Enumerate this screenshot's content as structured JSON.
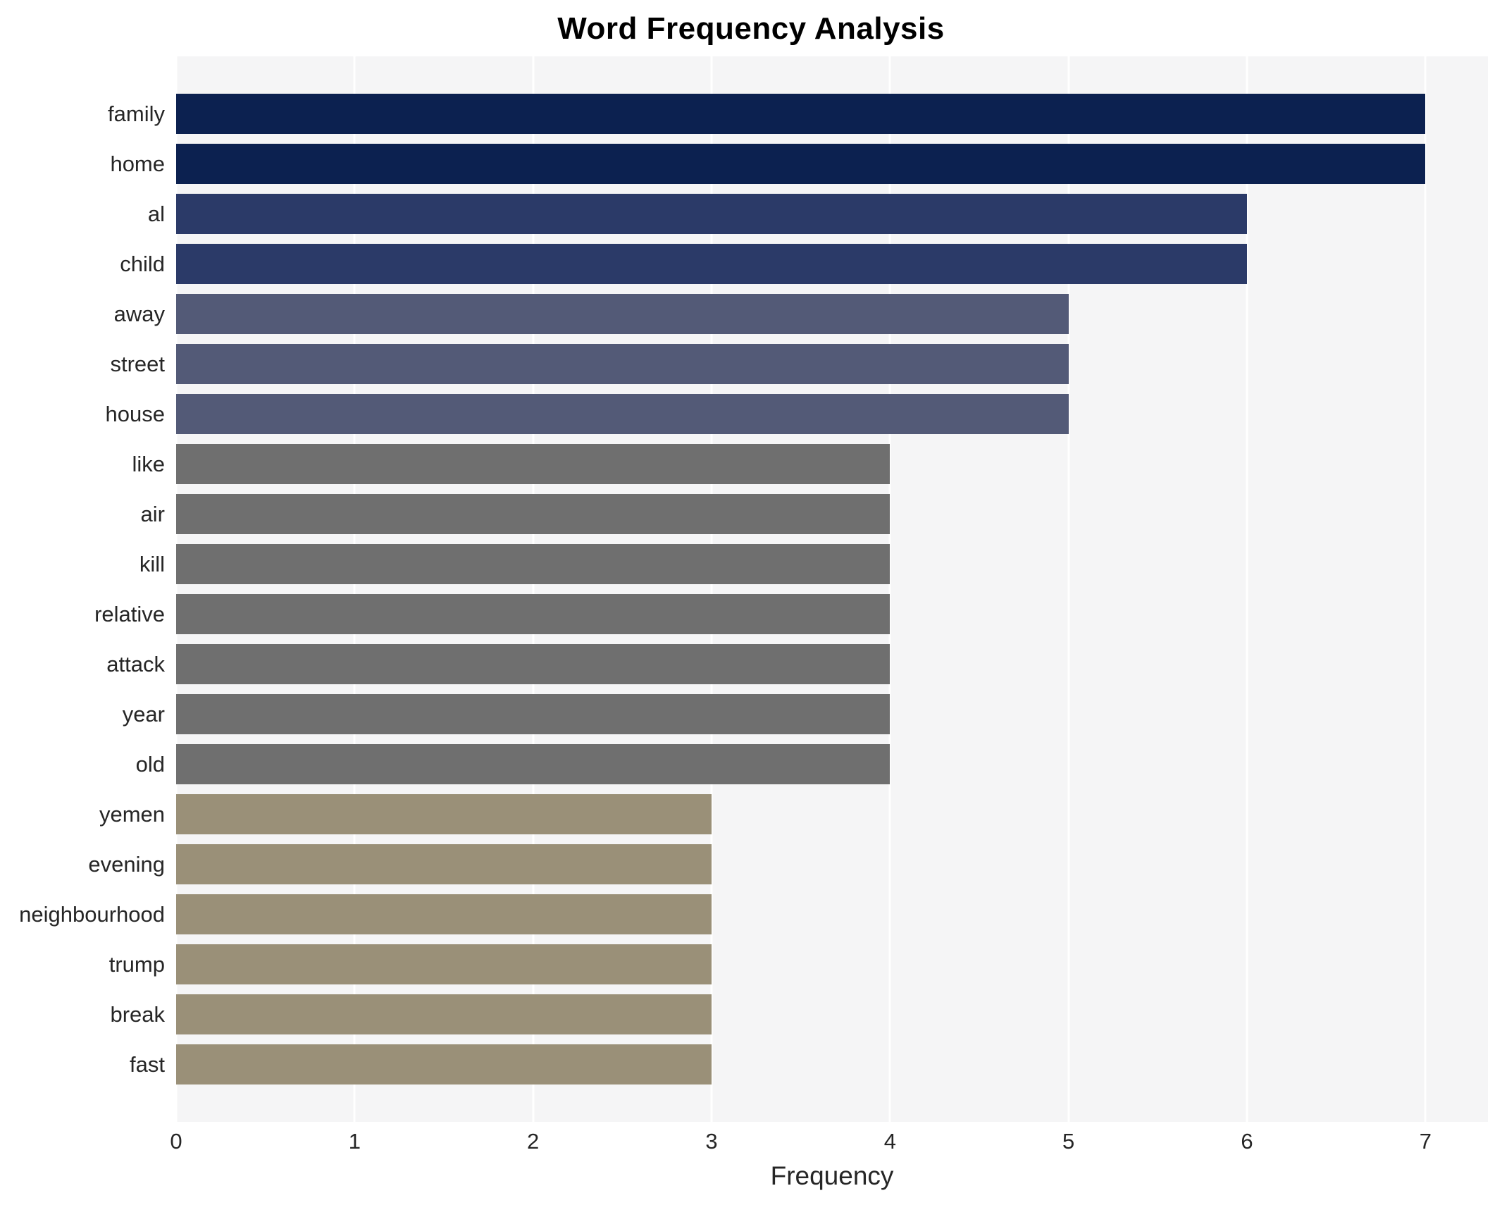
{
  "chart_data": {
    "type": "bar",
    "orientation": "horizontal",
    "title": "Word Frequency Analysis",
    "xlabel": "Frequency",
    "ylabel": "",
    "categories": [
      "family",
      "home",
      "al",
      "child",
      "away",
      "street",
      "house",
      "like",
      "air",
      "kill",
      "relative",
      "attack",
      "year",
      "old",
      "yemen",
      "evening",
      "neighbourhood",
      "trump",
      "break",
      "fast"
    ],
    "values": [
      7,
      7,
      6,
      6,
      5,
      5,
      5,
      4,
      4,
      4,
      4,
      4,
      4,
      4,
      3,
      3,
      3,
      3,
      3,
      3
    ],
    "colors": [
      "#0c2150",
      "#0c2150",
      "#2b3a68",
      "#2b3a68",
      "#535a77",
      "#535a77",
      "#535a77",
      "#6f6f6f",
      "#6f6f6f",
      "#6f6f6f",
      "#6f6f6f",
      "#6f6f6f",
      "#6f6f6f",
      "#6f6f6f",
      "#9a9078",
      "#9a9078",
      "#9a9078",
      "#9a9078",
      "#9a9078",
      "#9a9078"
    ],
    "xlim": [
      0,
      7.35
    ],
    "xticks": [
      0,
      1,
      2,
      3,
      4,
      5,
      6,
      7
    ],
    "grid": true,
    "legend": "none",
    "plot_background": "#f5f5f6",
    "grid_color": "#ffffff"
  }
}
